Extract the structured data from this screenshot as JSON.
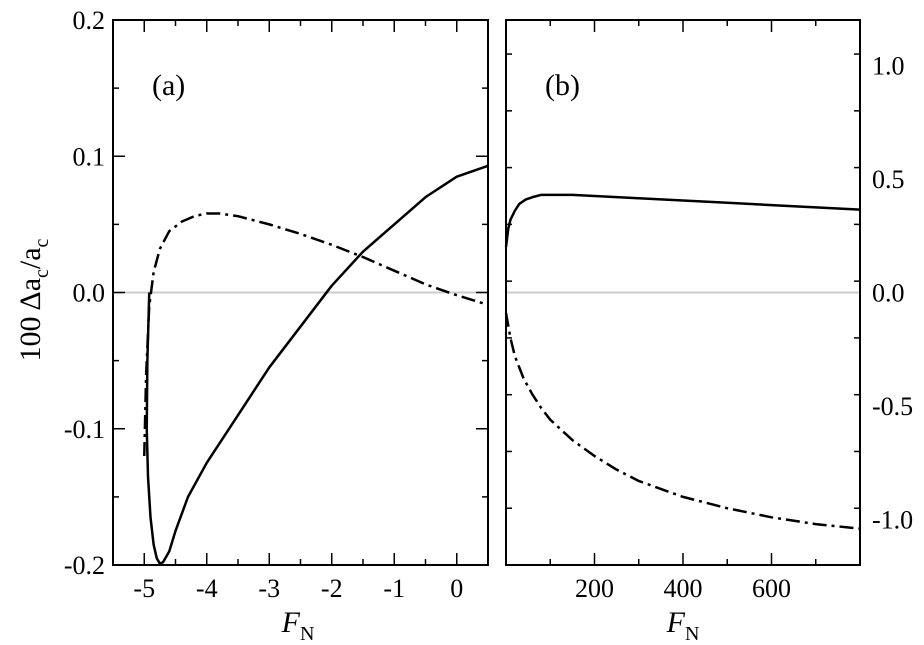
{
  "chart_data": [
    {
      "type": "line",
      "panel_label": "(a)",
      "xlabel": "F",
      "xlabel_sub": "N",
      "ylabel": "100 Δa",
      "ylabel_sub": "c",
      "ylabel_mid": "/a",
      "ylabel_sub2": "c",
      "xlim": [
        -5.5,
        0.5
      ],
      "ylim": [
        -0.2,
        0.2
      ],
      "xticks": [
        -5,
        -4,
        -3,
        -2,
        -1,
        0
      ],
      "xtick_labels": [
        "-5",
        "-4",
        "-3",
        "-2",
        "-1",
        "0"
      ],
      "yticks": [
        -0.2,
        -0.1,
        0.0,
        0.1,
        0.2
      ],
      "ytick_labels": [
        "-0.2",
        "-0.1",
        "0.0",
        "0.1",
        "0.2"
      ],
      "zero_line": 0.0,
      "series": [
        {
          "name": "solid",
          "style": "solid",
          "x": [
            -4.92,
            -4.95,
            -4.96,
            -4.94,
            -4.9,
            -4.85,
            -4.8,
            -4.75,
            -4.7,
            -4.6,
            -4.5,
            -4.3,
            -4.0,
            -3.5,
            -3.0,
            -2.5,
            -2.0,
            -1.5,
            -1.0,
            -0.5,
            0.0,
            0.5
          ],
          "y": [
            0.0,
            -0.05,
            -0.1,
            -0.135,
            -0.165,
            -0.185,
            -0.195,
            -0.199,
            -0.198,
            -0.19,
            -0.175,
            -0.15,
            -0.125,
            -0.09,
            -0.055,
            -0.025,
            0.005,
            0.03,
            0.05,
            0.07,
            0.085,
            0.093
          ]
        },
        {
          "name": "dash-dot",
          "style": "dashdot",
          "x": [
            -5.0,
            -4.97,
            -4.92,
            -4.85,
            -4.75,
            -4.6,
            -4.4,
            -4.2,
            -4.0,
            -3.8,
            -3.5,
            -3.0,
            -2.5,
            -2.0,
            -1.5,
            -1.0,
            -0.5,
            0.0,
            0.5
          ],
          "y": [
            -0.12,
            -0.06,
            -0.01,
            0.015,
            0.032,
            0.045,
            0.052,
            0.056,
            0.058,
            0.058,
            0.056,
            0.05,
            0.043,
            0.035,
            0.026,
            0.016,
            0.006,
            -0.002,
            -0.009
          ]
        }
      ]
    },
    {
      "type": "line",
      "panel_label": "(b)",
      "xlabel": "F",
      "xlabel_sub": "N",
      "xlim": [
        0,
        800
      ],
      "ylim": [
        -1.2,
        1.2
      ],
      "xticks": [
        200,
        400,
        600
      ],
      "xtick_labels": [
        "200",
        "400",
        "600"
      ],
      "yticks": [
        -1.0,
        -0.5,
        0.0,
        0.5,
        1.0
      ],
      "ytick_labels": [
        "-1.0",
        "-0.5",
        "0.0",
        "0.5",
        "1.0"
      ],
      "zero_line": 0.0,
      "series": [
        {
          "name": "solid",
          "style": "solid",
          "x": [
            0,
            5,
            10,
            20,
            30,
            45,
            60,
            80,
            100,
            120,
            150,
            200,
            300,
            400,
            500,
            600,
            700,
            800
          ],
          "y": [
            0.2,
            0.28,
            0.32,
            0.36,
            0.39,
            0.41,
            0.42,
            0.43,
            0.43,
            0.43,
            0.43,
            0.425,
            0.415,
            0.405,
            0.395,
            0.385,
            0.375,
            0.365
          ]
        },
        {
          "name": "dash-dot",
          "style": "dashdot",
          "x": [
            0,
            10,
            20,
            40,
            60,
            80,
            100,
            150,
            200,
            250,
            300,
            400,
            500,
            600,
            700,
            800
          ],
          "y": [
            -0.09,
            -0.2,
            -0.28,
            -0.38,
            -0.45,
            -0.51,
            -0.56,
            -0.65,
            -0.72,
            -0.78,
            -0.83,
            -0.9,
            -0.95,
            -0.99,
            -1.02,
            -1.04
          ]
        }
      ]
    }
  ]
}
